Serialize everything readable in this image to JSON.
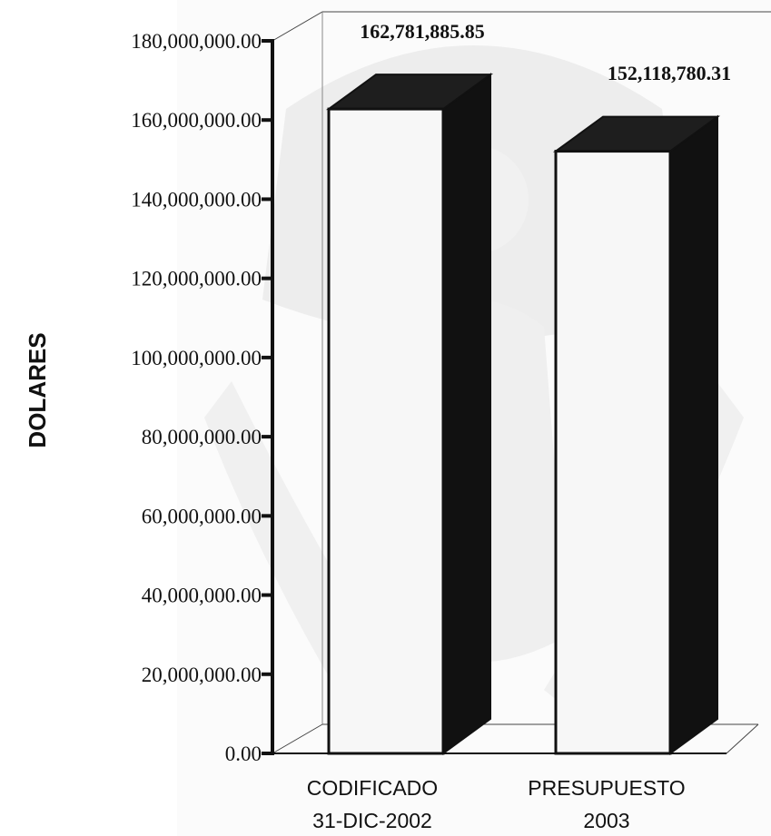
{
  "chart_data": {
    "type": "bar",
    "three_d": true,
    "categories": [
      {
        "line1": "CODIFICADO",
        "line2": "31-DIC-2002"
      },
      {
        "line1": "PRESUPUESTO",
        "line2": "2003"
      }
    ],
    "values": [
      162781885.85,
      152118780.31
    ],
    "value_labels": [
      "162,781,885.85",
      "152,118,780.31"
    ],
    "ylabel": "DOLARES",
    "ylim": [
      0,
      180000000
    ],
    "yticks": [
      {
        "value": 0,
        "label": "0.00"
      },
      {
        "value": 20000000,
        "label": "20,000,000.00"
      },
      {
        "value": 40000000,
        "label": "40,000,000.00"
      },
      {
        "value": 60000000,
        "label": "60,000,000.00"
      },
      {
        "value": 80000000,
        "label": "80,000,000.00"
      },
      {
        "value": 100000000,
        "label": "100,000,000.00"
      },
      {
        "value": 120000000,
        "label": "120,000,000.00"
      },
      {
        "value": 140000000,
        "label": "140,000,000.00"
      },
      {
        "value": 160000000,
        "label": "160,000,000.00"
      },
      {
        "value": 180000000,
        "label": "180,000,000.00"
      }
    ],
    "grid": false,
    "legend": "none",
    "colors": {
      "bar_front": "#f7f7f7",
      "bar_side": "#111111",
      "bar_top": "#1e1e1e",
      "axis": "#111111",
      "wall": "#444444",
      "watermark": "#ececec"
    }
  }
}
